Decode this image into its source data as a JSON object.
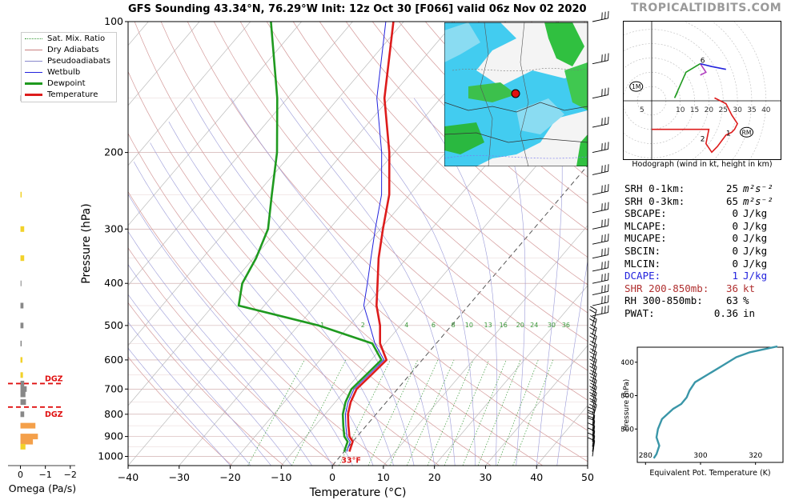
{
  "header": {
    "title": "GFS Sounding 43.34°N, 76.29°W Init: 12z Oct 30 [F066] valid 06z Nov 02 2020",
    "brand": "TROPICALTIDBITS.COM"
  },
  "legend": {
    "items": [
      {
        "label": "Sat. Mix. Ratio",
        "color": "#3a9a3a",
        "style": "dotted"
      },
      {
        "label": "Dry Adiabats",
        "color": "#c98080",
        "style": "solid"
      },
      {
        "label": "Pseudoadiabats",
        "color": "#8888cc",
        "style": "solid"
      },
      {
        "label": "Wetbulb",
        "color": "#2222dd",
        "style": "solid"
      },
      {
        "label": "Dewpoint",
        "color": "#1f9a1f",
        "style": "thick"
      },
      {
        "label": "Temperature",
        "color": "#dd1c1c",
        "style": "thick"
      }
    ]
  },
  "colors": {
    "temperature": "#dd1c1c",
    "dewpoint": "#1f9a1f",
    "wetbulb": "#2222dd",
    "dcape": "#2222dd",
    "shear": "#b03030",
    "theta_e": "#3a96a8",
    "dgz": "#e01010"
  },
  "chart_data": [
    {
      "type": "line",
      "name": "skew-t",
      "xlabel": "Temperature (°C)",
      "ylabel": "Pressure (hPa)",
      "xlim": [
        -40,
        50
      ],
      "ylim": [
        1050,
        100
      ],
      "y_scale": "log",
      "x_ticks": [
        -40,
        -30,
        -20,
        -10,
        0,
        10,
        20,
        30,
        40,
        50
      ],
      "x_tick_labels": [
        "−40",
        "−30",
        "−20",
        "−10",
        "0",
        "10",
        "20",
        "30",
        "40",
        "50"
      ],
      "y_ticks": [
        100,
        200,
        300,
        400,
        500,
        600,
        700,
        800,
        900,
        1000
      ],
      "mixing_ratio_labels": [
        "1",
        "2",
        "4",
        "6",
        "8",
        "10",
        "13",
        "16",
        "20",
        "24",
        "30",
        "36"
      ],
      "mixing_ratio_values": [
        1,
        2,
        4,
        6,
        8,
        10,
        13,
        16,
        20,
        24,
        30,
        36
      ],
      "surface_label": "33°F",
      "pressure": [
        975,
        950,
        925,
        900,
        850,
        800,
        750,
        700,
        650,
        600,
        550,
        500,
        450,
        400,
        350,
        300,
        250,
        200,
        150,
        100
      ],
      "series": [
        {
          "name": "Temperature",
          "values": [
            1.0,
            0.5,
            0.0,
            -1.5,
            -3.5,
            -5.5,
            -7.0,
            -8.0,
            -7.5,
            -7.0,
            -11.0,
            -14.0,
            -18.0,
            -21.5,
            -25.5,
            -29.5,
            -34.0,
            -41.0,
            -51.0,
            -62.0
          ]
        },
        {
          "name": "Dewpoint",
          "values": [
            0.0,
            -0.5,
            -1.0,
            -2.5,
            -4.5,
            -6.5,
            -8.0,
            -9.0,
            -8.5,
            -8.0,
            -12.5,
            -26.0,
            -45.0,
            -48.0,
            -49.5,
            -52.0,
            -57.0,
            -63.0,
            -72.0,
            -86.0
          ]
        },
        {
          "name": "Wetbulb",
          "values": [
            0.5,
            0.0,
            -0.5,
            -2.0,
            -4.0,
            -6.0,
            -7.5,
            -8.5,
            -8.0,
            -7.5,
            -12.0,
            -16.0,
            -20.5,
            -23.5,
            -27.0,
            -31.0,
            -35.5,
            -42.5,
            -52.5,
            -63.5
          ]
        }
      ]
    },
    {
      "type": "line",
      "name": "hodograph",
      "xlabel": "Hodograph (wind in kt, height in km)",
      "ring_labels": [
        "5",
        "10",
        "15",
        "20",
        "25",
        "30",
        "35",
        "40"
      ],
      "ring_values": [
        5,
        10,
        15,
        20,
        25,
        30,
        35,
        40
      ],
      "marker_labels": [
        "1",
        "2",
        "6"
      ],
      "storm_motion_labels": [
        "1M",
        "RM"
      ],
      "storm_motion": [
        {
          "label": "1M",
          "u": -11,
          "v": 5
        },
        {
          "label": "RM",
          "u": 36,
          "v": -11
        }
      ],
      "series": [
        {
          "name": "0-1 km",
          "color": "#dd1c1c",
          "u": [
            0,
            20,
            19,
            21,
            23,
            26,
            28,
            29,
            30,
            28,
            26,
            22
          ],
          "v": [
            -10,
            -10,
            -15,
            -18,
            -16,
            -12,
            -11,
            -10,
            -8,
            -5,
            -1,
            1
          ]
        },
        {
          "name": "3-6 km",
          "color": "#1f9a1f",
          "u": [
            9,
            8,
            12,
            17
          ],
          "v": [
            3,
            1,
            10,
            13
          ]
        },
        {
          "name": "6-9 km",
          "color": "#b040c0",
          "u": [
            17,
            19,
            17
          ],
          "v": [
            13,
            10,
            9
          ]
        },
        {
          "name": "9+ km",
          "color": "#2222dd",
          "u": [
            17,
            21,
            26
          ],
          "v": [
            13,
            12,
            11
          ]
        }
      ]
    },
    {
      "type": "line",
      "name": "theta-e",
      "xlabel": "Equivalent Pot. Temperature (K)",
      "ylabel": "Pressure (hPa)",
      "xlim": [
        277,
        330
      ],
      "ylim": [
        1000,
        310
      ],
      "x_ticks": [
        280,
        300,
        320
      ],
      "y_ticks": [
        400,
        600,
        800
      ],
      "x": [
        283,
        284,
        285,
        284,
        284.5,
        286,
        290,
        293,
        295,
        296,
        298,
        303,
        308,
        313,
        318,
        328
      ],
      "y": [
        975,
        950,
        900,
        850,
        800,
        740,
        680,
        650,
        610,
        570,
        520,
        470,
        420,
        370,
        340,
        305
      ]
    },
    {
      "type": "bar",
      "name": "omega",
      "xlabel": "Omega (Pa/s)",
      "xlim": [
        0.5,
        -2.2
      ],
      "x_ticks": [
        0,
        -1,
        -2
      ],
      "x_tick_labels": [
        "0",
        "−1",
        "−2"
      ],
      "dgz_label": "DGZ",
      "dgz_bounds": [
        680,
        770
      ],
      "pressure": [
        150,
        250,
        300,
        350,
        400,
        450,
        500,
        550,
        600,
        650,
        680,
        700,
        720,
        750,
        800,
        850,
        900,
        925,
        950
      ],
      "values": [
        -0.15,
        -0.05,
        -0.15,
        -0.15,
        -0.05,
        -0.12,
        -0.12,
        -0.05,
        -0.08,
        -0.1,
        -0.15,
        -0.25,
        -0.2,
        -0.22,
        -0.15,
        -0.6,
        -0.7,
        -0.5,
        -0.2
      ],
      "bar_colors": [
        "#888888",
        "#f2d22a",
        "#f2d22a",
        "#f2d22a",
        "#aaaaaa",
        "#888888",
        "#888888",
        "#888888",
        "#f2d22a",
        "#f2d22a",
        "#888888",
        "#888888",
        "#888888",
        "#888888",
        "#888888",
        "#f4a04a",
        "#f4a04a",
        "#f4a04a",
        "#f2d22a"
      ]
    }
  ],
  "stats": [
    {
      "name": "SRH 0-1km:",
      "value": "25",
      "unit": "m²s⁻²",
      "color": "#000000"
    },
    {
      "name": "SRH 0-3km:",
      "value": "65",
      "unit": "m²s⁻²",
      "color": "#000000"
    },
    {
      "name": "SBCAPE:",
      "value": "0",
      "unit": "J/kg",
      "color": "#000000"
    },
    {
      "name": "MLCAPE:",
      "value": "0",
      "unit": "J/kg",
      "color": "#000000"
    },
    {
      "name": "MUCAPE:",
      "value": "0",
      "unit": "J/kg",
      "color": "#000000"
    },
    {
      "name": "SBCIN:",
      "value": "0",
      "unit": "J/kg",
      "color": "#000000"
    },
    {
      "name": "MLCIN:",
      "value": "0",
      "unit": "J/kg",
      "color": "#000000"
    },
    {
      "name": "DCAPE:",
      "value": "1",
      "unit": "J/kg",
      "color": "#2222dd"
    },
    {
      "name": "SHR 200-850mb:",
      "value": "36",
      "unit": "kt",
      "color": "#b03030"
    },
    {
      "name": "RH 300-850mb:",
      "value": "63",
      "unit": "%",
      "color": "#000000"
    },
    {
      "name": "PWAT:",
      "value": "0.36",
      "unit": "in",
      "color": "#000000"
    }
  ]
}
